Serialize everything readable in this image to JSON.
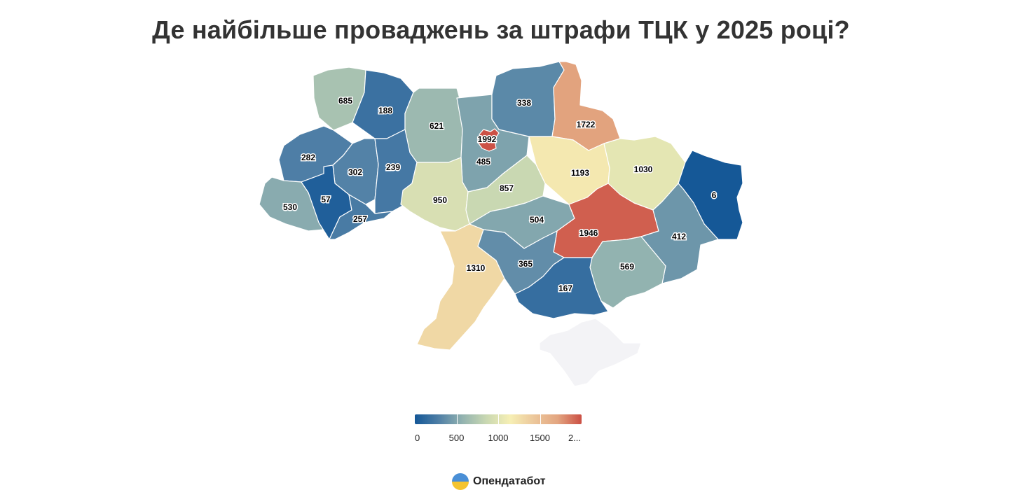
{
  "title": "Де найбільше проваджень за штрафи ТЦК у 2025 році?",
  "colorscale": [
    "#145797",
    "#4f7fa6",
    "#93b3b0",
    "#c9d8b2",
    "#f6efb4",
    "#ecc79b",
    "#e3a580",
    "#cb4f44"
  ],
  "legend": {
    "min": 0,
    "max": 2000,
    "labels": [
      "0",
      "500",
      "1000",
      "1500",
      "2..."
    ]
  },
  "regions": [
    {
      "id": "volyn",
      "value": 685
    },
    {
      "id": "rivne",
      "value": 188
    },
    {
      "id": "zhytomyr",
      "value": 621
    },
    {
      "id": "kyiv-oblast",
      "value": 485
    },
    {
      "id": "kyiv-city",
      "value": 1992
    },
    {
      "id": "chernihiv",
      "value": 338
    },
    {
      "id": "sumy",
      "value": 1722
    },
    {
      "id": "lviv",
      "value": 282
    },
    {
      "id": "ternopil",
      "value": 302
    },
    {
      "id": "khmelnytskyi",
      "value": 239
    },
    {
      "id": "vinnytsia",
      "value": 950
    },
    {
      "id": "cherkasy",
      "value": 857
    },
    {
      "id": "poltava",
      "value": 1193
    },
    {
      "id": "kharkiv",
      "value": 1030
    },
    {
      "id": "luhansk",
      "value": 6
    },
    {
      "id": "zakarpattia",
      "value": 530
    },
    {
      "id": "ivano-frankivsk",
      "value": 57
    },
    {
      "id": "chernivtsi",
      "value": 257
    },
    {
      "id": "kirovohrad",
      "value": 504
    },
    {
      "id": "dnipropetrovsk",
      "value": 1946
    },
    {
      "id": "donetsk",
      "value": 412
    },
    {
      "id": "odesa",
      "value": 1310
    },
    {
      "id": "mykolaiv",
      "value": 365
    },
    {
      "id": "zaporizhzhia",
      "value": 569
    },
    {
      "id": "kherson",
      "value": 167
    },
    {
      "id": "crimea",
      "value": null
    }
  ],
  "no_data_color": "#f3f3f6",
  "brand": {
    "name": "Опендатабот"
  }
}
